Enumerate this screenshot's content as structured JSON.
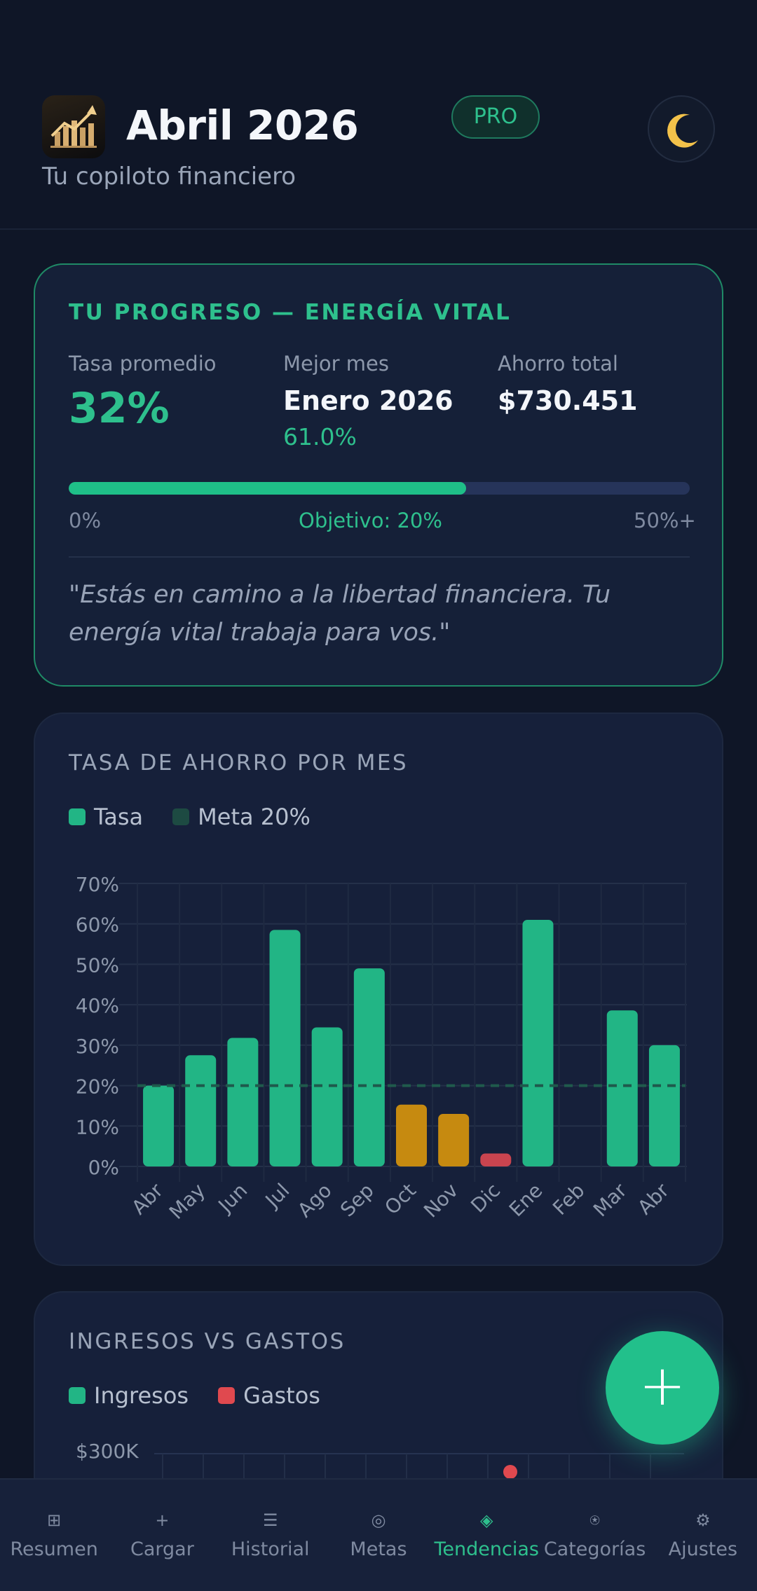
{
  "header": {
    "title": "Abril 2026",
    "subtitle": "Tu copiloto financiero",
    "badge": "PRO",
    "theme_icon": "moon-icon"
  },
  "progress": {
    "heading": "TU PROGRESO — ENERGÍA VITAL",
    "avg_label": "Tasa promedio",
    "avg_value": "32%",
    "best_label": "Mejor mes",
    "best_value": "Enero 2026",
    "best_rate": "61.0%",
    "total_label": "Ahorro total",
    "total_value": "$730.451",
    "bar_fill_fraction": 0.64,
    "scale_min": "0%",
    "scale_goal": "Objetivo: 20%",
    "scale_max": "50%+",
    "quote": "\"Estás en camino a la libertad financiera. Tu energía vital trabaja para vos.\""
  },
  "savings": {
    "heading": "TASA DE AHORRO POR MES",
    "legend_rate": "Tasa",
    "legend_goal": "Meta 20%"
  },
  "income": {
    "heading": "INGRESOS VS GASTOS",
    "legend_income": "Ingresos",
    "legend_expense": "Gastos",
    "y_top_label": "$300K"
  },
  "colors": {
    "accent": "#22b585",
    "warning": "#c68a10",
    "danger": "#c9444f",
    "goal_line": "#1f5a4c"
  },
  "chart_data": {
    "type": "bar",
    "title": "TASA DE AHORRO POR MES",
    "categories": [
      "Abr",
      "May",
      "Jun",
      "Jul",
      "Ago",
      "Sep",
      "Oct",
      "Nov",
      "Dic",
      "Ene",
      "Feb",
      "Mar",
      "Abr"
    ],
    "series": [
      {
        "name": "Tasa",
        "values": [
          20,
          27.5,
          31.8,
          58.5,
          34.4,
          49,
          15.3,
          13,
          3.2,
          61,
          0,
          38.6,
          30
        ]
      }
    ],
    "goal": {
      "name": "Meta 20%",
      "value": 20
    },
    "ylim": [
      0,
      70
    ],
    "yticks": [
      "0%",
      "10%",
      "20%",
      "30%",
      "40%",
      "50%",
      "60%",
      "70%"
    ],
    "grid": true,
    "legend": "top-left"
  },
  "nav": [
    {
      "label": "Resumen",
      "icon": "grid-icon",
      "glyph": "⊞",
      "active": false
    },
    {
      "label": "Cargar",
      "icon": "plus-icon",
      "glyph": "+",
      "active": false
    },
    {
      "label": "Historial",
      "icon": "list-icon",
      "glyph": "☰",
      "active": false
    },
    {
      "label": "Metas",
      "icon": "target-icon",
      "glyph": "◎",
      "active": false
    },
    {
      "label": "Tendencias",
      "icon": "trend-icon",
      "glyph": "◈",
      "active": true
    },
    {
      "label": "Categorías",
      "icon": "tag-icon",
      "glyph": "⍟",
      "active": false
    },
    {
      "label": "Ajustes",
      "icon": "gear-icon",
      "glyph": "⚙",
      "active": false
    }
  ],
  "fab": {
    "glyph": "+"
  }
}
